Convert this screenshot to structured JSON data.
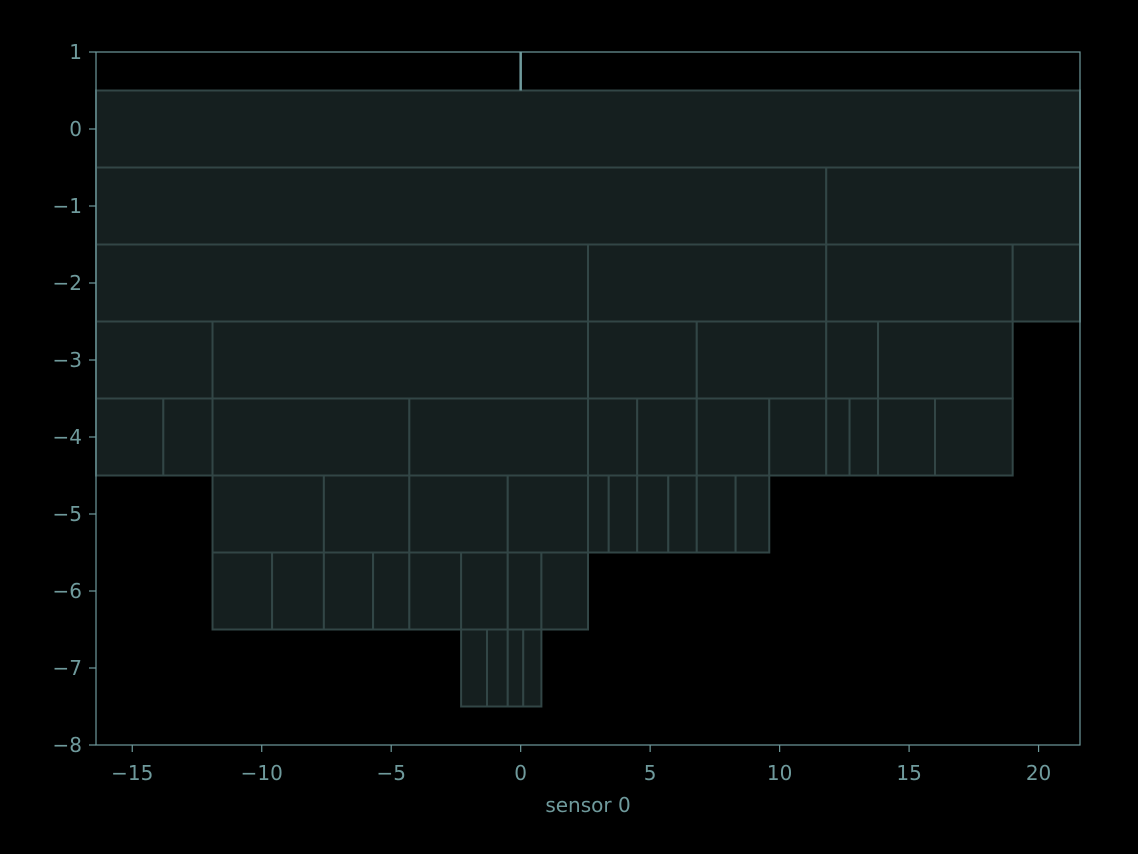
{
  "chart_data": {
    "type": "flame",
    "title": "",
    "xlabel": "sensor 0",
    "ylabel": "",
    "xlim": [
      -16.4,
      21.6
    ],
    "ylim": [
      -8,
      1
    ],
    "xticks": [
      -15,
      -10,
      -5,
      0,
      5,
      10,
      15,
      20
    ],
    "yticks": [
      1,
      0,
      -1,
      -2,
      -3,
      -4,
      -5,
      -6,
      -7,
      -8
    ],
    "grid": false,
    "colors": {
      "background": "#000000",
      "box_fill": "#151f1f",
      "box_stroke": "#324646",
      "axis": "#6f9a9c",
      "root_line": "#6f9a9c"
    },
    "root_line": {
      "x": 0,
      "y_from": 0.5,
      "y_to": 1
    },
    "levels": [
      {
        "level": 0,
        "edges": [
          -16.4,
          21.6
        ]
      },
      {
        "level": -1,
        "edges": [
          -16.4,
          11.8,
          21.6
        ]
      },
      {
        "level": -2,
        "edges": [
          -16.4,
          2.6,
          11.8,
          19.0,
          21.6
        ]
      },
      {
        "level": -3,
        "edges": [
          -16.4,
          -11.9,
          2.6,
          6.8,
          11.8,
          13.8,
          19.0
        ]
      },
      {
        "level": -4,
        "edges": [
          -16.4,
          -13.8,
          -11.9,
          -4.3,
          2.6,
          4.5,
          6.8,
          9.6,
          11.8,
          12.7,
          13.8,
          16.0,
          19.0
        ]
      },
      {
        "level": -5,
        "edges": [
          -11.9,
          -7.6,
          -4.3,
          -0.5,
          2.6,
          3.4,
          4.5,
          5.7,
          6.8,
          8.3,
          9.6
        ]
      },
      {
        "level": -6,
        "edges": [
          -11.9,
          -9.6,
          -7.6,
          -5.7,
          -4.3,
          -2.3,
          -0.5,
          0.8,
          2.6
        ]
      },
      {
        "level": -7,
        "edges": [
          -2.3,
          -1.3,
          -0.5,
          0.1,
          0.8
        ]
      }
    ]
  }
}
